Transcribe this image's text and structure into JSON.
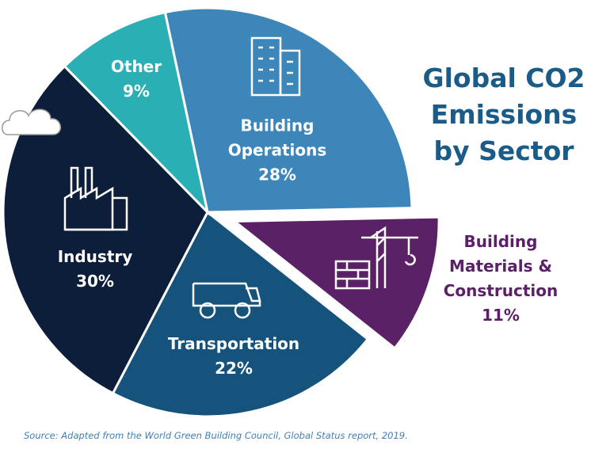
{
  "chart_data": {
    "type": "pie",
    "title": "Global CO2 Emissions by Sector",
    "categories": [
      "Building Operations",
      "Building Materials & Construction",
      "Transportation",
      "Industry",
      "Other"
    ],
    "values": [
      28,
      11,
      22,
      30,
      9
    ],
    "value_labels": [
      "28%",
      "11%",
      "22%",
      "30%",
      "9%"
    ],
    "colors": [
      "#3d86ba",
      "#5b2167",
      "#15527c",
      "#0c1e3a",
      "#2aafb4"
    ],
    "source": "Source: Adapted from the World Green Building Council, Global Status report, 2019."
  }
}
